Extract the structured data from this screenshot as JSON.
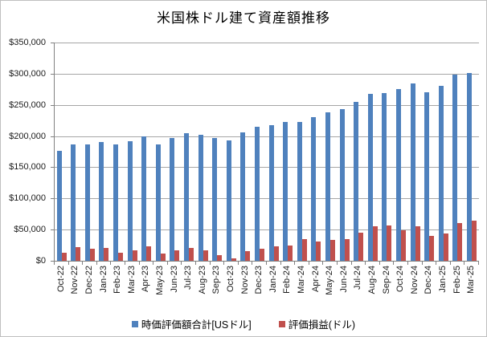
{
  "title": "米国株ドル建て資産額推移",
  "colors": {
    "series1": "#4F81BD",
    "series2": "#C0504D",
    "gridline": "#A6A6A6",
    "axis": "#808080",
    "canvas_border": "#BFBFBF"
  },
  "y_axis": {
    "tick_labels_top_to_bottom": [
      "$350,000",
      "$300,000",
      "$250,000",
      "$200,000",
      "$150,000",
      "$100,000",
      "$50,000",
      "$0"
    ]
  },
  "legend": {
    "items": [
      {
        "label": "時価評価額合計[USドル]",
        "color": "#4F81BD"
      },
      {
        "label": "評価損益(ドル)",
        "color": "#C0504D"
      }
    ]
  },
  "chart_data": {
    "type": "bar",
    "title": "米国株ドル建て資産額推移",
    "categories": [
      "Oct-22",
      "Nov-22",
      "Dec-22",
      "Jan-23",
      "Feb-23",
      "Mar-23",
      "Apr-23",
      "May-23",
      "Jun-23",
      "Jul-23",
      "Aug-23",
      "Sep-23",
      "Oct-23",
      "Nov-23",
      "Dec-23",
      "Jan-24",
      "Feb-24",
      "Mar-24",
      "Apr-24",
      "May-24",
      "Jun-24",
      "Jul-24",
      "Aug-24",
      "Sep-24",
      "Oct-24",
      "Nov-24",
      "Dec-24",
      "Jan-25",
      "Feb-25",
      "Mar-25"
    ],
    "series": [
      {
        "name": "時価評価額合計[USドル]",
        "color": "#4F81BD",
        "values": [
          176000,
          186000,
          186000,
          190000,
          186000,
          192000,
          200000,
          186000,
          197000,
          204000,
          202000,
          197000,
          193000,
          206000,
          215000,
          218000,
          223000,
          222000,
          230000,
          238000,
          243000,
          255000,
          268000,
          269000,
          275000,
          285000,
          270000,
          281000,
          298000,
          301000
        ]
      },
      {
        "name": "評価損益(ドル)",
        "color": "#C0504D",
        "values": [
          13000,
          22000,
          19000,
          21000,
          13000,
          17000,
          23000,
          12000,
          17000,
          21000,
          17000,
          9000,
          4000,
          15000,
          19000,
          23000,
          25000,
          35000,
          31000,
          34000,
          35000,
          45000,
          55000,
          56000,
          49000,
          55000,
          40000,
          44000,
          60000,
          64000
        ]
      }
    ],
    "ylim": [
      0,
      350000
    ],
    "y_tick_step": 50000,
    "y_tick_format": "$#,##0",
    "grid": true,
    "legend_position": "bottom",
    "x_label_rotation": -90
  }
}
